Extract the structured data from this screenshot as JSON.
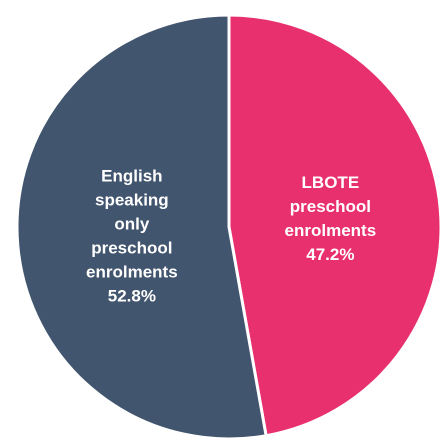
{
  "chart_data": {
    "type": "pie",
    "title": "",
    "slices": [
      {
        "label_lines": [
          "LBOTE",
          "preschool",
          "enrolments"
        ],
        "value": 47.2,
        "value_label": "47.2%",
        "color": "#E8306E"
      },
      {
        "label_lines": [
          "English",
          "speaking",
          "only",
          "preschool",
          "enrolments"
        ],
        "value": 52.8,
        "value_label": "52.8%",
        "color": "#42556F"
      }
    ],
    "start_angle_deg": 0,
    "direction": "clockwise",
    "legend": "none",
    "slice_border_color": "#FFFFFF"
  }
}
